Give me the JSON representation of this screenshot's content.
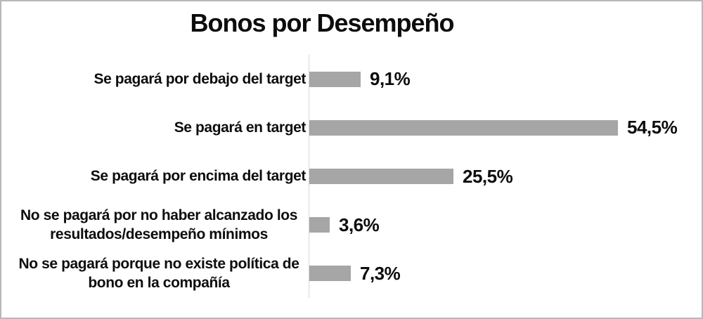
{
  "window": {
    "background": "#ffffff",
    "border_color": "#b6b9bb"
  },
  "chart": {
    "title": "Bonos por Desempeño"
  },
  "chart_data": {
    "type": "bar",
    "orientation": "horizontal",
    "title": "Bonos por Desempeño",
    "categories": [
      "Se pagará por debajo del target",
      "Se pagará en target",
      "Se pagará por encima del target",
      "No se pagará por no haber alcanzado los resultados/desempeño mínimos",
      "No se pagará porque no existe política de bono en la compañía"
    ],
    "values": [
      9.1,
      54.5,
      25.5,
      3.6,
      7.3
    ],
    "value_labels": [
      "9,1%",
      "54,5%",
      "25,5%",
      "3,6%",
      "7,3%"
    ],
    "unit": "percent",
    "xlim": [
      0,
      60
    ],
    "grid": false,
    "legend": false,
    "data_labels": "outside-end",
    "bar_color": "#a6a6a6",
    "axis_line_color": "#d6d6d6",
    "text_color": "#0d0d0d"
  }
}
